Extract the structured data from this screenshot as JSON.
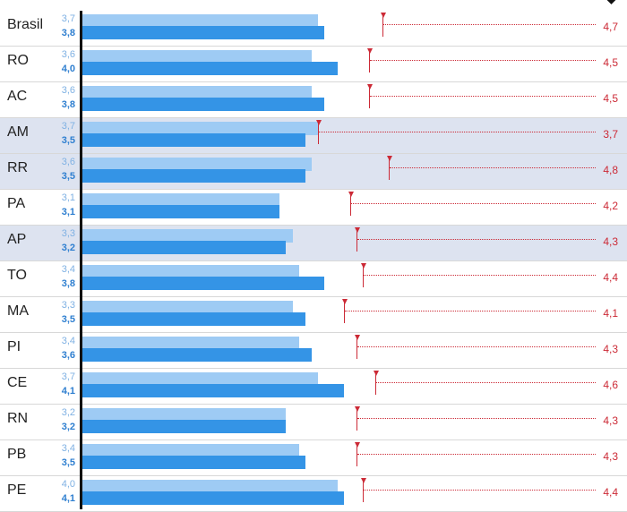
{
  "chart_data": {
    "type": "bar",
    "orientation": "horizontal",
    "xlim": [
      0,
      7.44
    ],
    "categories": [
      "Brasil",
      "RO",
      "AC",
      "AM",
      "RR",
      "PA",
      "AP",
      "TO",
      "MA",
      "PI",
      "CE",
      "RN",
      "PB",
      "PE"
    ],
    "highlighted": [
      "AM",
      "RR",
      "AP"
    ],
    "series": [
      {
        "color": "#9ecbf4",
        "values": [
          3.7,
          3.6,
          3.6,
          3.7,
          3.6,
          3.1,
          3.3,
          3.4,
          3.3,
          3.4,
          3.7,
          3.2,
          3.4,
          4.0
        ],
        "labels": [
          "3,7",
          "3,6",
          "3,6",
          "3,7",
          "3,6",
          "3,1",
          "3,3",
          "3,4",
          "3,3",
          "3,4",
          "3,7",
          "3,2",
          "3,4",
          "4,0"
        ]
      },
      {
        "color": "#3494e6",
        "values": [
          3.8,
          4.0,
          3.8,
          3.5,
          3.5,
          3.1,
          3.2,
          3.8,
          3.5,
          3.6,
          4.1,
          3.2,
          3.5,
          4.1
        ],
        "labels": [
          "3,8",
          "4,0",
          "3,8",
          "3,5",
          "3,5",
          "3,1",
          "3,2",
          "3,8",
          "3,5",
          "3,6",
          "4,1",
          "3,2",
          "3,5",
          "4,1"
        ]
      }
    ],
    "markers": {
      "color": "#cc2a36",
      "values": [
        4.7,
        4.5,
        4.5,
        3.7,
        4.8,
        4.2,
        4.3,
        4.4,
        4.1,
        4.3,
        4.6,
        4.3,
        4.3,
        4.4
      ],
      "labels": [
        "4,7",
        "4,5",
        "4,5",
        "3,7",
        "4,8",
        "4,2",
        "4,3",
        "4,4",
        "4,1",
        "4,3",
        "4,6",
        "4,3",
        "4,3",
        "4,4"
      ]
    }
  }
}
